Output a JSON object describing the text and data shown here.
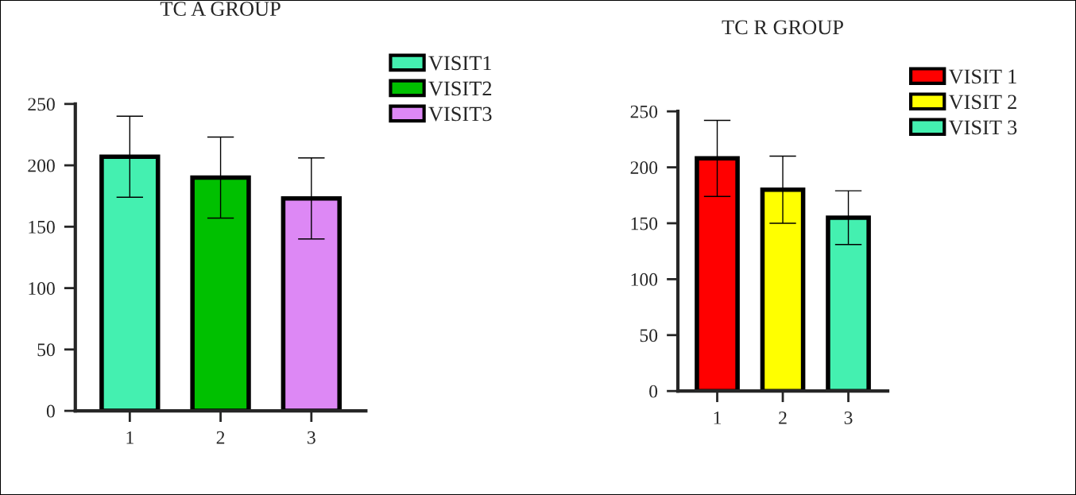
{
  "chart_data": [
    {
      "type": "bar",
      "title": "TC A GROUP",
      "categories": [
        "1",
        "2",
        "3"
      ],
      "ylim": [
        0,
        250
      ],
      "yticks": [
        0,
        50,
        100,
        150,
        200,
        250
      ],
      "legend": "top right",
      "grid": false,
      "series": [
        {
          "name": "VISIT1",
          "color": "#44f0b0",
          "values": [
            207,
            null,
            null
          ],
          "errors": [
            33,
            null,
            null
          ]
        },
        {
          "name": "VISIT2",
          "color": "#00c000",
          "values": [
            null,
            190,
            null
          ],
          "errors": [
            null,
            33,
            null
          ]
        },
        {
          "name": "VISIT3",
          "color": "#dd88f5",
          "values": [
            null,
            null,
            173
          ],
          "errors": [
            null,
            null,
            33
          ]
        }
      ]
    },
    {
      "type": "bar",
      "title": "TC R GROUP",
      "categories": [
        "1",
        "2",
        "3"
      ],
      "ylim": [
        0,
        250
      ],
      "yticks": [
        0,
        50,
        100,
        150,
        200,
        250
      ],
      "legend": "top right",
      "grid": false,
      "series": [
        {
          "name": "VISIT 1",
          "color": "#ff0000",
          "values": [
            208,
            null,
            null
          ],
          "errors": [
            34,
            null,
            null
          ]
        },
        {
          "name": "VISIT 2",
          "color": "#ffff00",
          "values": [
            null,
            180,
            null
          ],
          "errors": [
            null,
            30,
            null
          ]
        },
        {
          "name": "VISIT 3",
          "color": "#44f0b0",
          "values": [
            null,
            null,
            155
          ],
          "errors": [
            null,
            null,
            24
          ]
        }
      ]
    }
  ]
}
